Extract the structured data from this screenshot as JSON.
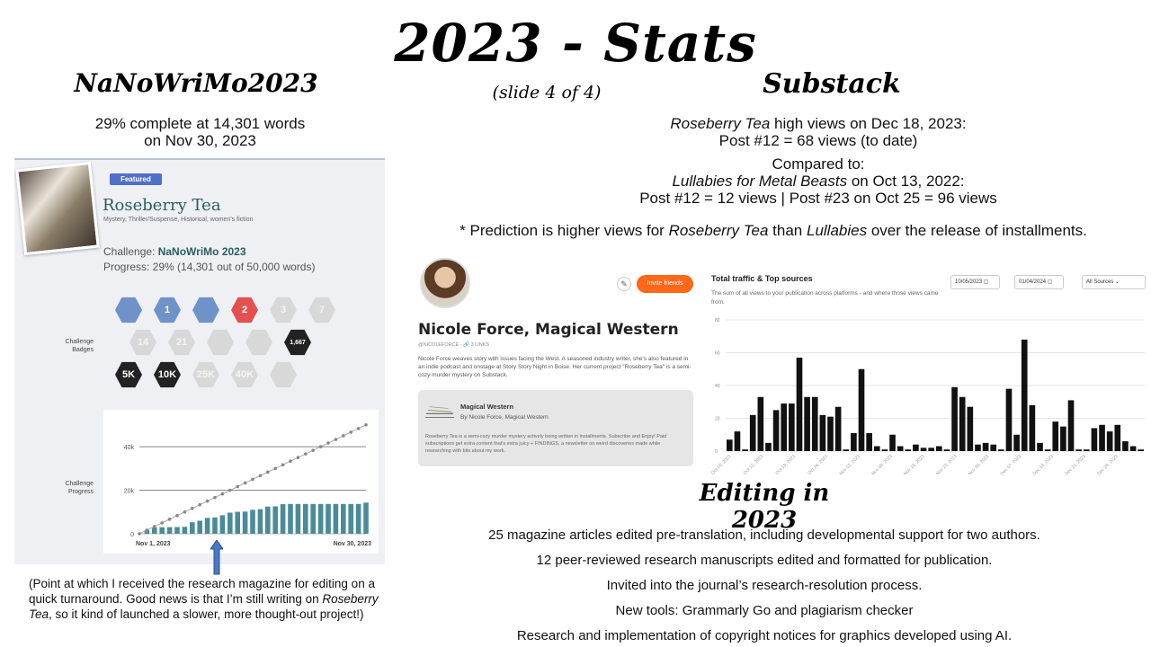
{
  "title": "2023 - Stats",
  "slide_label": "(slide 4 of 4)",
  "nano": {
    "heading": "NaNoWriMo2023",
    "summary_line1": "29% complete at 14,301 words",
    "summary_line2": "on Nov 30, 2023",
    "featured": "Featured",
    "book_title": "Roseberry Tea",
    "genres": "Mystery, Thriller/Suspense, Historical, women's fiction",
    "challenge_label": "Challenge:",
    "challenge_value": "NaNoWriMo 2023",
    "progress_text": "Progress: 29% (14,301 out of 50,000 words)",
    "badges_label_1": "Challenge",
    "badges_label_2": "Badges",
    "chart_label_1": "Challenge",
    "chart_label_2": "Progress",
    "badges": [
      {
        "label": "",
        "color": "#6f93c9",
        "earned": true
      },
      {
        "label": "1",
        "color": "#6f93c9",
        "earned": true
      },
      {
        "label": "",
        "color": "#6f93c9",
        "earned": true
      },
      {
        "label": "2",
        "color": "#e45050",
        "earned": true
      },
      {
        "label": "3",
        "color": "#d8d8d8",
        "earned": false
      },
      {
        "label": "7",
        "color": "#d8d8d8",
        "earned": false
      },
      {
        "label": "14",
        "color": "#d8d8d8",
        "earned": false
      },
      {
        "label": "21",
        "color": "#d8d8d8",
        "earned": false
      },
      {
        "label": "",
        "color": "#d8d8d8",
        "earned": false
      },
      {
        "label": "",
        "color": "#d8d8d8",
        "earned": false
      },
      {
        "label": "1,667",
        "color": "#222222",
        "earned": true
      },
      {
        "label": "5K",
        "color": "#222222",
        "earned": true
      },
      {
        "label": "10K",
        "color": "#222222",
        "earned": true
      },
      {
        "label": "25K",
        "color": "#d8d8d8",
        "earned": false
      },
      {
        "label": "40K",
        "color": "#d8d8d8",
        "earned": false
      },
      {
        "label": "",
        "color": "#d8d8d8",
        "earned": false
      }
    ],
    "point_note_1": "(Point at which I received the research magazine for editing on a quick turnaround.  Good news is that I’m still writing on ",
    "point_note_italic": "Roseberry Tea",
    "point_note_2": ", so it kind of launched a slower, more thought-out project!)"
  },
  "substack": {
    "heading": "Substack",
    "rt_title": "Roseberry Tea",
    "rt_line1_rest": " high views on Dec 18, 2023:",
    "rt_line2": "Post #12 = 68 views (to date)",
    "compared": "Compared to:",
    "lmb_title": "Lullabies for Metal Beasts",
    "lmb_rest": " on Oct 13, 2022:",
    "lmb_line2": "Post #12 = 12 views | Post #23 on Oct 25 = 96 views",
    "pred_1": "* Prediction is higher views for ",
    "pred_rt": "Roseberry Tea",
    "pred_2": " than ",
    "pred_lull": "Lullabies",
    "pred_3": " over the release  of installments."
  },
  "profile": {
    "name": "Nicole Force, Magical Western",
    "handle": "@NICOLEFORCE  ·  🔗 3 LINKS",
    "bio": "Nicole Force weaves story with issues facing the West. A seasoned industry writer, she's also featured in an indie podcast and onstage at Story Story Night in Boise. Her current project \"Roseberry Tea\" is a semi-cozy murder mystery on Substack.",
    "invite_label": "Invite friends",
    "pub_name": "Magical Western",
    "pub_by": "By Nicole Force, Magical Western",
    "pub_desc": "Roseberry Tea is a semi-cozy murder mystery actively being written in installments. Subscribe and Enjoy! Paid subscriptions get extra content that's extra juicy + FINDINGS, a newsletter on weird discoveries made while researching with bits about my work."
  },
  "traffic": {
    "title": "Total traffic & Top sources",
    "subtitle": "The sum of all views to your publication across platforms - and where those views came from.",
    "date_from": "10/05/2023 ▢",
    "date_to": "01/04/2024 ▢",
    "source": "All Sources   ⌄"
  },
  "editing": {
    "heading": "Editing in 2023",
    "items": [
      "25 magazine articles edited pre-translation, including developmental support for two authors.",
      "12 peer-reviewed  research  manuscripts  edited and formatted for publication.",
      "Invited into the journal’s research-resolution  process.",
      "New tools: Grammarly Go and plagiarism checker",
      "Research  and implementation  of copyright notices for graphics developed using AI."
    ]
  },
  "chart_data": [
    {
      "type": "bar",
      "name": "NaNoWriMo challenge progress",
      "x_start_label": "Nov 1, 2023",
      "x_end_label": "Nov 30, 2023",
      "y_ticks": [
        "0",
        "20k",
        "40k"
      ],
      "ylim": [
        0,
        52000
      ],
      "goal_line": [
        0,
        1667,
        3333,
        5000,
        6667,
        8333,
        10000,
        11667,
        13333,
        15000,
        16667,
        18333,
        20000,
        21667,
        23333,
        25000,
        26667,
        28333,
        30000,
        31667,
        33333,
        35000,
        36667,
        38333,
        40000,
        41667,
        43333,
        45000,
        46667,
        48333,
        50000
      ],
      "values": [
        0,
        1700,
        2900,
        3000,
        3050,
        3100,
        3200,
        5300,
        6000,
        7300,
        7500,
        8500,
        9700,
        10100,
        10200,
        11000,
        11300,
        12500,
        12600,
        13600,
        13700,
        13700,
        13700,
        13700,
        13700,
        13700,
        13700,
        13700,
        13700,
        13700,
        14301
      ]
    },
    {
      "type": "bar",
      "name": "Substack total traffic",
      "y_ticks": [
        "0",
        "20",
        "40",
        "60",
        "80"
      ],
      "ylim": [
        0,
        80
      ],
      "x_tick_labels": [
        "Oct 05, 2023",
        "Oct 12, 2023",
        "Oct 19, 2023",
        "Oct 26, 2023",
        "Nov 02, 2023",
        "Nov 09, 2023",
        "Nov 16, 2023",
        "Nov 23, 2023",
        "Nov 30, 2023",
        "Dec 07, 2023",
        "Dec 14, 2023",
        "Dec 21, 2023",
        "Dec 28, 2023"
      ],
      "values": [
        7,
        12,
        1,
        22,
        33,
        5,
        25,
        29,
        29,
        57,
        33,
        33,
        22,
        21,
        27,
        1,
        11,
        50,
        11,
        3,
        1,
        10,
        3,
        1,
        4,
        2,
        2,
        3,
        1,
        39,
        33,
        27,
        4,
        5,
        4,
        1,
        38,
        10,
        68,
        28,
        5,
        1,
        18,
        15,
        31,
        1,
        1,
        14,
        16,
        12,
        16,
        6,
        3,
        1
      ]
    }
  ]
}
